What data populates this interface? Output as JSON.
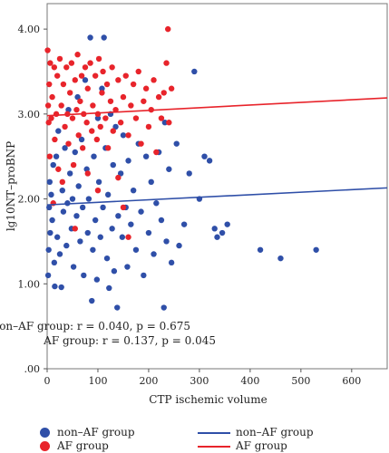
{
  "chart_data": {
    "type": "scatter",
    "xlabel": "CTP ischemic volume",
    "ylabel": "lg10NT–proBNP",
    "xlim": [
      0,
      670
    ],
    "ylim": [
      0,
      4.3
    ],
    "x_ticks": [
      0,
      100,
      200,
      300,
      400,
      500,
      600
    ],
    "x_tick_labels": [
      "0",
      "100",
      "200",
      "300",
      "400",
      "500",
      "600"
    ],
    "y_ticks": [
      0,
      1,
      2,
      3,
      4
    ],
    "y_tick_labels": [
      ".00",
      "1.00",
      "2.00",
      "3.00",
      "4.00"
    ],
    "grid": false,
    "legend_position": "bottom",
    "series": [
      {
        "name": "non–AF group",
        "color": "#2f4fa8",
        "points": [
          [
            2,
            1.1
          ],
          [
            3,
            1.4
          ],
          [
            4,
            1.9
          ],
          [
            5,
            2.2
          ],
          [
            6,
            1.6
          ],
          [
            8,
            2.05
          ],
          [
            10,
            1.75
          ],
          [
            12,
            2.4
          ],
          [
            14,
            1.25
          ],
          [
            15,
            0.97
          ],
          [
            18,
            2.5
          ],
          [
            20,
            1.55
          ],
          [
            22,
            2.8
          ],
          [
            25,
            1.35
          ],
          [
            28,
            0.96
          ],
          [
            30,
            2.1
          ],
          [
            32,
            1.85
          ],
          [
            35,
            2.6
          ],
          [
            38,
            1.45
          ],
          [
            40,
            1.95
          ],
          [
            42,
            3.05
          ],
          [
            45,
            2.3
          ],
          [
            48,
            1.65
          ],
          [
            50,
            2.0
          ],
          [
            52,
            1.2
          ],
          [
            55,
            2.55
          ],
          [
            58,
            1.8
          ],
          [
            60,
            3.2
          ],
          [
            62,
            2.15
          ],
          [
            65,
            1.5
          ],
          [
            68,
            2.7
          ],
          [
            70,
            1.9
          ],
          [
            72,
            1.1
          ],
          [
            75,
            3.4
          ],
          [
            78,
            2.35
          ],
          [
            80,
            1.6
          ],
          [
            82,
            2.0
          ],
          [
            85,
            3.9
          ],
          [
            88,
            0.8
          ],
          [
            90,
            1.4
          ],
          [
            92,
            2.5
          ],
          [
            95,
            1.75
          ],
          [
            98,
            1.05
          ],
          [
            100,
            2.95
          ],
          [
            102,
            2.2
          ],
          [
            105,
            1.55
          ],
          [
            108,
            3.3
          ],
          [
            110,
            1.9
          ],
          [
            112,
            3.9
          ],
          [
            115,
            2.6
          ],
          [
            118,
            1.3
          ],
          [
            120,
            2.05
          ],
          [
            122,
            0.95
          ],
          [
            125,
            3.0
          ],
          [
            128,
            1.65
          ],
          [
            130,
            2.4
          ],
          [
            132,
            1.15
          ],
          [
            135,
            2.85
          ],
          [
            138,
            0.72
          ],
          [
            140,
            1.8
          ],
          [
            145,
            2.3
          ],
          [
            148,
            1.55
          ],
          [
            150,
            2.75
          ],
          [
            155,
            1.9
          ],
          [
            158,
            1.2
          ],
          [
            160,
            2.45
          ],
          [
            165,
            1.7
          ],
          [
            170,
            2.1
          ],
          [
            175,
            1.4
          ],
          [
            180,
            2.65
          ],
          [
            185,
            1.85
          ],
          [
            190,
            1.1
          ],
          [
            195,
            2.5
          ],
          [
            200,
            1.6
          ],
          [
            205,
            2.2
          ],
          [
            210,
            1.35
          ],
          [
            215,
            1.95
          ],
          [
            220,
            2.55
          ],
          [
            225,
            1.75
          ],
          [
            230,
            0.72
          ],
          [
            232,
            2.9
          ],
          [
            235,
            1.5
          ],
          [
            240,
            2.35
          ],
          [
            245,
            1.25
          ],
          [
            255,
            2.65
          ],
          [
            260,
            1.45
          ],
          [
            270,
            1.7
          ],
          [
            280,
            2.3
          ],
          [
            290,
            3.5
          ],
          [
            300,
            2.0
          ],
          [
            310,
            2.5
          ],
          [
            320,
            2.45
          ],
          [
            330,
            1.65
          ],
          [
            335,
            1.55
          ],
          [
            345,
            1.6
          ],
          [
            355,
            1.7
          ],
          [
            420,
            1.4
          ],
          [
            460,
            1.3
          ],
          [
            530,
            1.4
          ]
        ]
      },
      {
        "name": "AF group",
        "color": "#e8242b",
        "points": [
          [
            1,
            3.75
          ],
          [
            2,
            3.1
          ],
          [
            3,
            2.9
          ],
          [
            4,
            3.35
          ],
          [
            5,
            2.5
          ],
          [
            6,
            3.6
          ],
          [
            8,
            2.95
          ],
          [
            10,
            3.2
          ],
          [
            12,
            1.95
          ],
          [
            14,
            3.55
          ],
          [
            15,
            2.7
          ],
          [
            18,
            3.0
          ],
          [
            20,
            3.45
          ],
          [
            22,
            2.35
          ],
          [
            25,
            3.65
          ],
          [
            28,
            3.1
          ],
          [
            30,
            2.2
          ],
          [
            32,
            3.35
          ],
          [
            35,
            2.85
          ],
          [
            38,
            3.55
          ],
          [
            40,
            3.0
          ],
          [
            42,
            2.65
          ],
          [
            45,
            3.25
          ],
          [
            48,
            3.6
          ],
          [
            50,
            2.95
          ],
          [
            52,
            2.4
          ],
          [
            55,
            3.4
          ],
          [
            58,
            3.05
          ],
          [
            60,
            3.7
          ],
          [
            62,
            2.75
          ],
          [
            65,
            3.15
          ],
          [
            68,
            3.45
          ],
          [
            70,
            2.6
          ],
          [
            72,
            3.0
          ],
          [
            75,
            3.55
          ],
          [
            78,
            2.9
          ],
          [
            80,
            3.3
          ],
          [
            85,
            3.6
          ],
          [
            88,
            2.8
          ],
          [
            90,
            3.1
          ],
          [
            95,
            3.45
          ],
          [
            98,
            2.7
          ],
          [
            100,
            3.0
          ],
          [
            102,
            3.65
          ],
          [
            105,
            2.85
          ],
          [
            108,
            3.25
          ],
          [
            110,
            3.5
          ],
          [
            115,
            2.95
          ],
          [
            118,
            3.35
          ],
          [
            120,
            2.6
          ],
          [
            125,
            3.15
          ],
          [
            128,
            3.55
          ],
          [
            130,
            2.8
          ],
          [
            135,
            3.05
          ],
          [
            140,
            3.4
          ],
          [
            145,
            2.9
          ],
          [
            150,
            3.2
          ],
          [
            155,
            3.45
          ],
          [
            160,
            2.75
          ],
          [
            165,
            3.1
          ],
          [
            170,
            3.35
          ],
          [
            175,
            2.95
          ],
          [
            180,
            3.5
          ],
          [
            185,
            2.65
          ],
          [
            190,
            3.15
          ],
          [
            195,
            3.3
          ],
          [
            200,
            2.85
          ],
          [
            205,
            3.05
          ],
          [
            210,
            3.4
          ],
          [
            215,
            2.55
          ],
          [
            220,
            3.2
          ],
          [
            225,
            2.95
          ],
          [
            230,
            3.25
          ],
          [
            235,
            3.6
          ],
          [
            238,
            4.0
          ],
          [
            240,
            2.9
          ],
          [
            245,
            3.3
          ],
          [
            150,
            1.9
          ],
          [
            100,
            2.1
          ],
          [
            80,
            2.3
          ],
          [
            55,
            1.65
          ],
          [
            160,
            1.55
          ],
          [
            140,
            2.25
          ]
        ]
      }
    ],
    "fit_lines": [
      {
        "name": "non–AF group",
        "color": "#2f4fa8",
        "x": [
          0,
          670
        ],
        "y": [
          1.93,
          2.13
        ]
      },
      {
        "name": "AF group",
        "color": "#e8242b",
        "x": [
          0,
          670
        ],
        "y": [
          2.98,
          3.19
        ]
      }
    ],
    "annotations": [
      "non–AF group: r = 0.040, p = 0.675",
      "AF group: r = 0.137, p = 0.045"
    ]
  },
  "legend": {
    "dot_nonaf": "non–AF group",
    "dot_af": "AF group",
    "line_nonaf": "non–AF group",
    "line_af": "AF group",
    "color_nonaf": "#2f4fa8",
    "color_af": "#e8242b"
  }
}
